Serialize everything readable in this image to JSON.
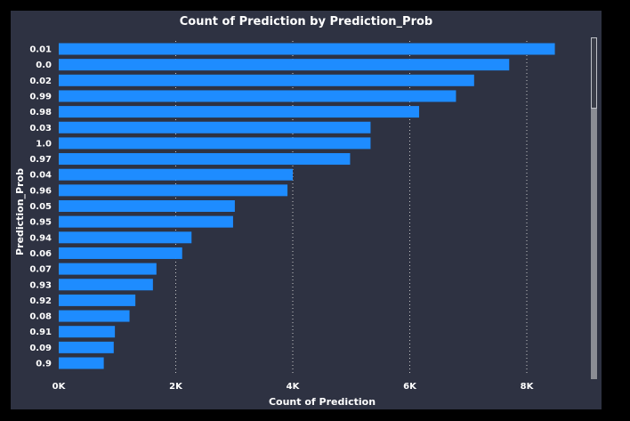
{
  "chart_data": {
    "type": "bar",
    "orientation": "horizontal",
    "title": "Count of Prediction by Prediction_Prob",
    "xlabel": "Count of Prediction",
    "ylabel": "Prediction_Prob",
    "categories": [
      "0.01",
      "0.0",
      "0.02",
      "0.99",
      "0.98",
      "0.03",
      "1.0",
      "0.97",
      "0.04",
      "0.96",
      "0.05",
      "0.95",
      "0.94",
      "0.06",
      "0.07",
      "0.93",
      "0.92",
      "0.08",
      "0.91",
      "0.09",
      "0.9"
    ],
    "values": [
      8480,
      7700,
      7100,
      6790,
      6160,
      5330,
      5330,
      4980,
      4000,
      3910,
      3010,
      2980,
      2270,
      2110,
      1670,
      1610,
      1310,
      1210,
      960,
      940,
      770
    ],
    "xlim": [
      0,
      9000
    ],
    "xticks": [
      0,
      2000,
      4000,
      6000,
      8000
    ],
    "xtick_labels": [
      "0K",
      "2K",
      "4K",
      "6K",
      "8K"
    ],
    "grid": "vertical dotted",
    "legend": "none",
    "bar_color": "#1e8cff",
    "background_color": "#2e3242"
  }
}
